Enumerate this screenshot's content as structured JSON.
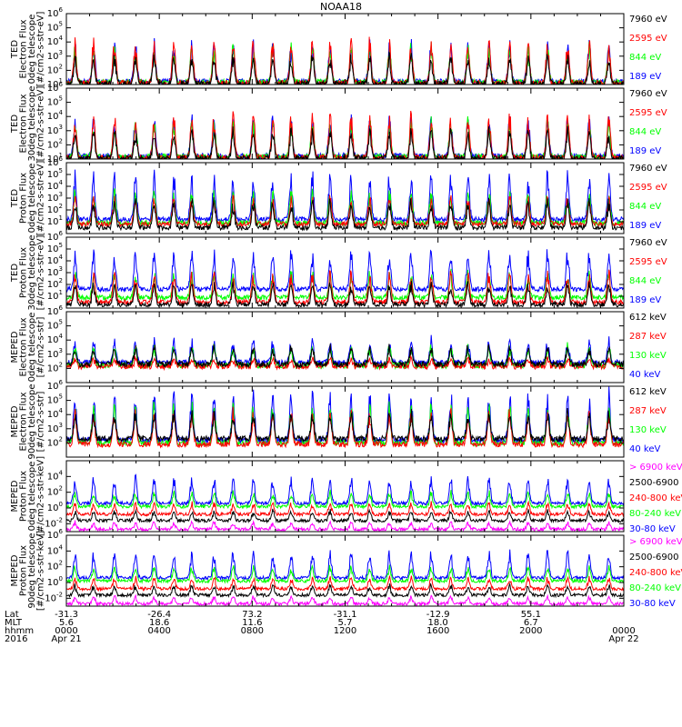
{
  "title": "NOAA18",
  "chart_data": {
    "type": "line",
    "colors": {
      "black": "#000000",
      "red": "#ff0000",
      "green": "#00ff00",
      "blue": "#0000ff",
      "magenta": "#ff00ff"
    },
    "panels": [
      {
        "ylabel": [
          "TED",
          "Electron Flux",
          "0deg telescope",
          "[#/cm2-s-str-eV]"
        ],
        "ylim_exp": [
          1,
          6
        ],
        "tick_exps": [
          1,
          2,
          3,
          4,
          5,
          6
        ],
        "legend": [
          {
            "text": "7960 eV",
            "color": "#000000"
          },
          {
            "text": "2595 eV",
            "color": "#ff0000"
          },
          {
            "text": "844 eV",
            "color": "#00ff00"
          },
          {
            "text": "189 eV",
            "color": "#0000ff"
          }
        ],
        "profile": "ted_e0"
      },
      {
        "ylabel": [
          "TED",
          "Electron Flux",
          "30deg telescope",
          "[#/cm2-s-str-eV]"
        ],
        "ylim_exp": [
          1,
          6
        ],
        "tick_exps": [
          1,
          2,
          3,
          4,
          5,
          6
        ],
        "legend": [
          {
            "text": "7960 eV",
            "color": "#000000"
          },
          {
            "text": "2595 eV",
            "color": "#ff0000"
          },
          {
            "text": "844 eV",
            "color": "#00ff00"
          },
          {
            "text": "189 eV",
            "color": "#0000ff"
          }
        ],
        "profile": "ted_e30"
      },
      {
        "ylabel": [
          "TED",
          "Proton Flux",
          "0deg telescope",
          "[#/cm2-s-str-eV]"
        ],
        "ylim_exp": [
          0,
          6
        ],
        "tick_exps": [
          1,
          2,
          3,
          4,
          5,
          6
        ],
        "legend": [
          {
            "text": "7960 eV",
            "color": "#000000"
          },
          {
            "text": "2595 eV",
            "color": "#ff0000"
          },
          {
            "text": "844 eV",
            "color": "#00ff00"
          },
          {
            "text": "189 eV",
            "color": "#0000ff"
          }
        ],
        "profile": "ted_p0"
      },
      {
        "ylabel": [
          "TED",
          "Proton Flux",
          "30deg telescope",
          "[#/cm2-s-str-eV]"
        ],
        "ylim_exp": [
          0,
          6
        ],
        "tick_exps": [
          1,
          2,
          3,
          4,
          5,
          6
        ],
        "legend": [
          {
            "text": "7960 eV",
            "color": "#000000"
          },
          {
            "text": "2595 eV",
            "color": "#ff0000"
          },
          {
            "text": "844 eV",
            "color": "#00ff00"
          },
          {
            "text": "189 eV",
            "color": "#0000ff"
          }
        ],
        "profile": "ted_p30"
      },
      {
        "ylabel": [
          "MEPED",
          "Electron Flux",
          "0deg telescope",
          "[#/cm2-s-str]"
        ],
        "ylim_exp": [
          1,
          6
        ],
        "tick_exps": [
          2,
          3,
          4,
          5,
          6
        ],
        "legend": [
          {
            "text": "612 keV",
            "color": "#000000"
          },
          {
            "text": "287 keV",
            "color": "#ff0000"
          },
          {
            "text": "130 keV",
            "color": "#00ff00"
          },
          {
            "text": "40 keV",
            "color": "#0000ff"
          }
        ],
        "profile": "mep_e0"
      },
      {
        "ylabel": [
          "MEPED",
          "Electron Flux",
          "90deg telescope",
          "[#/cm2-s-str]"
        ],
        "ylim_exp": [
          1,
          6
        ],
        "tick_exps": [
          2,
          3,
          4,
          5,
          6
        ],
        "legend": [
          {
            "text": "612 keV",
            "color": "#000000"
          },
          {
            "text": "287 keV",
            "color": "#ff0000"
          },
          {
            "text": "130 keV",
            "color": "#00ff00"
          },
          {
            "text": "40 keV",
            "color": "#0000ff"
          }
        ],
        "profile": "mep_e90"
      },
      {
        "ylabel": [
          "MEPED",
          "Proton Flux",
          "0deg telescope",
          "[#/cm2-s-str-keV]"
        ],
        "ylim_exp": [
          -3,
          6
        ],
        "tick_exps": [
          -2,
          0,
          2,
          4
        ],
        "legend": [
          {
            "text": "> 6900 keV",
            "color": "#ff00ff"
          },
          {
            "text": "2500-6900",
            "color": "#000000"
          },
          {
            "text": "240-800 keV",
            "color": "#ff0000"
          },
          {
            "text": "80-240 keV",
            "color": "#00ff00"
          },
          {
            "text": "30-80 keV",
            "color": "#0000ff"
          }
        ],
        "profile": "mep_p0"
      },
      {
        "ylabel": [
          "MEPED",
          "Proton Flux",
          "90deg telescope",
          "[#/cm2-s-str-keV]"
        ],
        "ylim_exp": [
          -3,
          6
        ],
        "tick_exps": [
          -2,
          0,
          2,
          4,
          6
        ],
        "legend": [
          {
            "text": "> 6900 keV",
            "color": "#ff00ff"
          },
          {
            "text": "2500-6900",
            "color": "#000000"
          },
          {
            "text": "240-800 keV",
            "color": "#ff0000"
          },
          {
            "text": "80-240 keV",
            "color": "#00ff00"
          },
          {
            "text": "30-80 keV",
            "color": "#0000ff"
          }
        ],
        "profile": "mep_p90"
      }
    ],
    "x_axis": {
      "row_labels": [
        "Lat",
        "MLT",
        "hhmm",
        "2016"
      ],
      "ticks": [
        {
          "hour": 0,
          "lat": "-31.3",
          "mlt": "5.6",
          "hhmm": "0000",
          "date": "Apr 21"
        },
        {
          "hour": 4,
          "lat": "-26.4",
          "mlt": "18.6",
          "hhmm": "0400",
          "date": ""
        },
        {
          "hour": 8,
          "lat": "73.2",
          "mlt": "11.6",
          "hhmm": "0800",
          "date": ""
        },
        {
          "hour": 12,
          "lat": "-31.1",
          "mlt": "5.7",
          "hhmm": "1200",
          "date": ""
        },
        {
          "hour": 16,
          "lat": "-12.9",
          "mlt": "18.0",
          "hhmm": "1600",
          "date": ""
        },
        {
          "hour": 20,
          "lat": "55.1",
          "mlt": "6.7",
          "hhmm": "2000",
          "date": ""
        },
        {
          "hour": 24,
          "lat": "",
          "mlt": "",
          "hhmm": "0000",
          "date": "Apr 22"
        }
      ],
      "xlim_hours": [
        0,
        24
      ]
    }
  }
}
